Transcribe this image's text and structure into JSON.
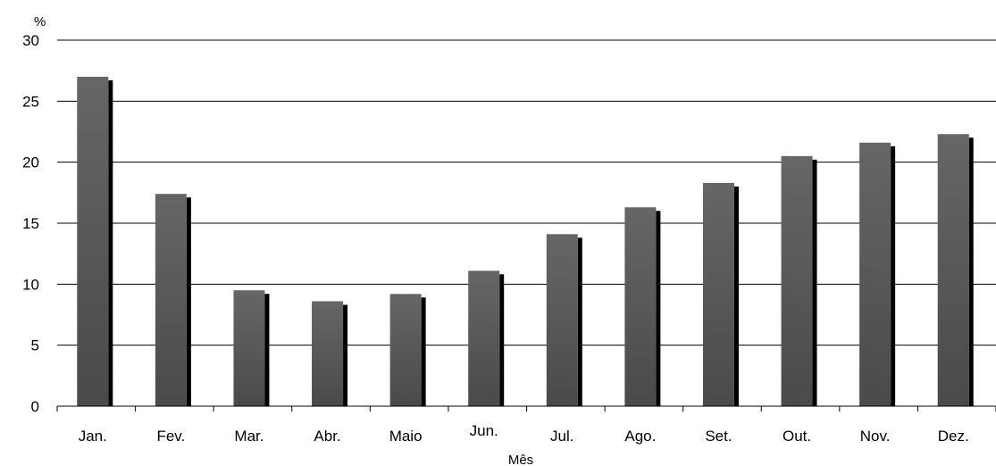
{
  "chart_data": {
    "type": "bar",
    "title": "",
    "ylabel": "%",
    "xlabel": "Mês",
    "categories": [
      "Jan.",
      "Fev.",
      "Mar.",
      "Abr.",
      "Maio",
      "Jun.",
      "Jul.",
      "Ago.",
      "Set.",
      "Out.",
      "Nov.",
      "Dez."
    ],
    "series": [
      {
        "values": [
          27.0,
          17.4,
          9.5,
          8.6,
          9.2,
          11.1,
          14.1,
          16.3,
          18.3,
          20.5,
          21.6,
          22.3
        ]
      }
    ],
    "ylim": [
      0,
      30
    ],
    "yticks": [
      "0",
      "5",
      "10",
      "15",
      "20",
      "25",
      "30"
    ],
    "grid": true,
    "colors": {
      "bar": "#5a5a5a",
      "shadow": "#000000",
      "grid": "#000000"
    }
  }
}
